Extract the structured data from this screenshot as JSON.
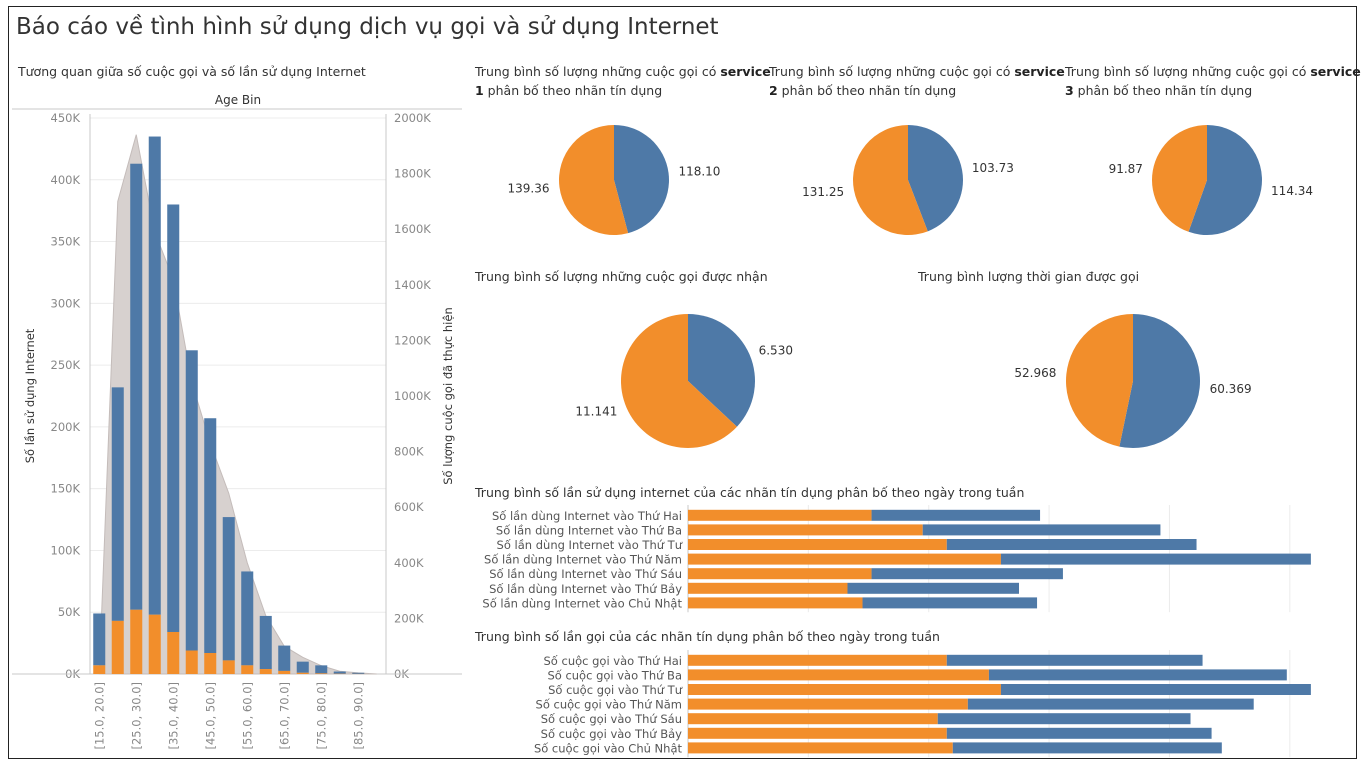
{
  "page": {
    "title": "Báo cáo về tình hình sử dụng dịch vụ gọi và sử dụng Internet"
  },
  "colors": {
    "blue": "#4e79a7",
    "orange": "#f28e2b",
    "area": "#d7d1cf",
    "grid": "#ececec",
    "axis": "#c8c8c8"
  },
  "combo": {
    "title": "Tương quan giữa số cuộc gọi và số lần sử dụng Internet",
    "header": "Age Bin",
    "ylabel_left": "Số lần sử dụng Internet",
    "ylabel_right": "Số lượng cuộc gọi đã thực hiện"
  },
  "pies": {
    "s1": {
      "title_a": "Trung bình số lượng những cuộc gọi có ",
      "title_b": "service",
      "title_c": "1",
      "title_d": " phân bố theo nhãn tín dụng"
    },
    "s2": {
      "title_a": "Trung bình số lượng những cuộc gọi có ",
      "title_b": "service",
      "title_c": "2",
      "title_d": " phân bố theo nhãn tín dụng"
    },
    "s3": {
      "title_a": "Trung bình số lượng những cuộc gọi có ",
      "title_b": "service",
      "title_c": "3",
      "title_d": " phân bố theo nhãn tín dụng"
    },
    "received": {
      "title": "Trung bình số lượng những cuộc gọi được nhận"
    },
    "duration": {
      "title": "Trung bình lượng thời gian được gọi"
    }
  },
  "bars": {
    "internet": {
      "title": "Trung bình số lần sử dụng internet của các nhãn tín dụng phân bố theo ngày trong tuần"
    },
    "calls": {
      "title": "Trung bình số lần gọi của các nhãn tín dụng phân bố theo ngày trong tuần"
    }
  },
  "chart_data": [
    {
      "type": "bar",
      "name": "combo",
      "categories": [
        "[15.0, 20.0]",
        "[20.0, 25.0]",
        "[25.0, 30.0]",
        "[30.0, 35.0]",
        "[35.0, 40.0]",
        "[40.0, 45.0]",
        "[45.0, 50.0]",
        "[50.0, 55.0]",
        "[55.0, 60.0]",
        "[60.0, 65.0]",
        "[65.0, 70.0]",
        "[70.0, 75.0]",
        "[75.0, 80.0]",
        "[80.0, 85.0]",
        "[85.0, 90.0]",
        "[90.0, 95.0]"
      ],
      "x_tick_labels": [
        "[15.0, 20.0]",
        "",
        "[25.0, 30.0]",
        "",
        "[35.0, 40.0]",
        "",
        "[45.0, 50.0]",
        "",
        "[55.0, 60.0]",
        "",
        "[65.0, 70.0]",
        "",
        "[75.0, 80.0]",
        "",
        "[85.0, 90.0]",
        ""
      ],
      "series": [
        {
          "color": "orange",
          "values": [
            7000,
            43000,
            52000,
            48000,
            34000,
            19000,
            17000,
            11000,
            7000,
            4000,
            2500,
            1000,
            500,
            200,
            100,
            0
          ]
        },
        {
          "color": "blue",
          "values": [
            49000,
            232000,
            413000,
            435000,
            380000,
            262000,
            207000,
            127000,
            83000,
            47000,
            23000,
            10000,
            7000,
            2000,
            1000,
            0
          ]
        }
      ],
      "area": {
        "color": "area",
        "values": [
          0,
          1700000,
          1940000,
          1590000,
          1420000,
          1050000,
          830000,
          650000,
          400000,
          210000,
          100000,
          60000,
          30000,
          10000,
          4000,
          0
        ]
      },
      "ylim_left": [
        0,
        450000
      ],
      "yticks_left": [
        "0K",
        "50K",
        "100K",
        "150K",
        "200K",
        "250K",
        "300K",
        "350K",
        "400K",
        "450K"
      ],
      "ylim_right": [
        0,
        2000000
      ],
      "yticks_right": [
        "0K",
        "200K",
        "400K",
        "600K",
        "800K",
        "1000K",
        "1200K",
        "1400K",
        "1600K",
        "1800K",
        "2000K"
      ],
      "grid": true
    },
    {
      "type": "pie",
      "name": "s1",
      "values": [
        118.1,
        139.36
      ],
      "labels": [
        "118.10",
        "139.36"
      ],
      "colors": [
        "blue",
        "orange"
      ]
    },
    {
      "type": "pie",
      "name": "s2",
      "values": [
        103.73,
        131.25
      ],
      "labels": [
        "103.73",
        "131.25"
      ],
      "colors": [
        "blue",
        "orange"
      ]
    },
    {
      "type": "pie",
      "name": "s3",
      "values": [
        114.34,
        91.87
      ],
      "labels": [
        "114.34",
        "91.87"
      ],
      "colors": [
        "blue",
        "orange"
      ]
    },
    {
      "type": "pie",
      "name": "received",
      "values": [
        6.53,
        11.141
      ],
      "labels": [
        "6.530",
        "11.141"
      ],
      "colors": [
        "blue",
        "orange"
      ]
    },
    {
      "type": "pie",
      "name": "duration",
      "values": [
        60.369,
        52.968
      ],
      "labels": [
        "60.369",
        "52.968"
      ],
      "colors": [
        "blue",
        "orange"
      ]
    },
    {
      "type": "bar",
      "orientation": "horizontal",
      "stacked": true,
      "name": "internet",
      "categories": [
        "Số lần dùng Internet vào Thứ Hai",
        "Số lần dùng Internet vào Thứ Ba",
        "Số lần dùng Internet vào Thứ Tư",
        "Số lần dùng Internet vào Thứ Năm",
        "Số lần dùng Internet vào Thứ Sáu",
        "Số lần dùng Internet vào Thứ Bảy",
        "Số lần dùng Internet vào Chủ Nhật"
      ],
      "series": [
        {
          "color": "orange",
          "values": [
            30.5,
            39.0,
            43.0,
            52.0,
            30.5,
            26.5,
            29.0
          ]
        },
        {
          "color": "blue",
          "values": [
            28.0,
            39.5,
            41.5,
            51.5,
            31.8,
            28.5,
            29.0
          ]
        }
      ],
      "xlim": [
        0,
        110
      ],
      "grid": true
    },
    {
      "type": "bar",
      "orientation": "horizontal",
      "stacked": true,
      "name": "calls",
      "categories": [
        "Số cuộc gọi vào Thứ Hai",
        "Số cuộc gọi vào Thứ Ba",
        "Số cuộc gọi vào Thứ Tư",
        "Số cuộc gọi vào Thứ Năm",
        "Số cuộc gọi vào Thứ Sáu",
        "Số cuộc gọi vào Thứ Bảy",
        "Số cuộc gọi vào Chủ Nhật"
      ],
      "series": [
        {
          "color": "orange",
          "values": [
            43.0,
            50.0,
            52.0,
            46.5,
            41.5,
            43.0,
            44.0
          ]
        },
        {
          "color": "blue",
          "values": [
            42.5,
            49.5,
            51.5,
            47.5,
            42.0,
            44.0,
            44.7
          ]
        }
      ],
      "xlim": [
        0,
        110
      ],
      "grid": true
    }
  ]
}
